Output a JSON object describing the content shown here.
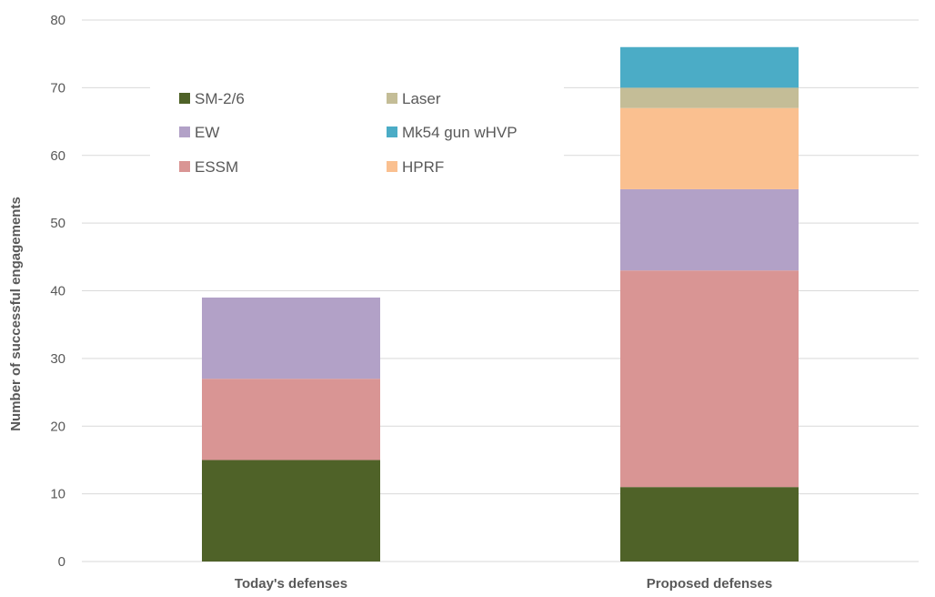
{
  "chart_data": {
    "type": "bar",
    "stacked": true,
    "title": "",
    "xlabel": "",
    "ylabel": "Number of successful engagements",
    "ylim": [
      0,
      80
    ],
    "yticks": [
      "0",
      "10",
      "20",
      "30",
      "40",
      "50",
      "60",
      "70",
      "80"
    ],
    "categories": [
      "Today's defenses",
      "Proposed defenses"
    ],
    "grid": true,
    "legend_position": "top-left",
    "series": [
      {
        "name": "SM-2/6",
        "color": "#4f6228",
        "values": [
          15,
          11
        ]
      },
      {
        "name": "ESSM",
        "color": "#d99594",
        "values": [
          12,
          32
        ]
      },
      {
        "name": "EW",
        "color": "#b2a1c7",
        "values": [
          12,
          12
        ]
      },
      {
        "name": "HPRF",
        "color": "#fac090",
        "values": [
          0,
          12
        ]
      },
      {
        "name": "Laser",
        "color": "#c4bd97",
        "values": [
          0,
          3
        ]
      },
      {
        "name": "Mk54 gun wHVP",
        "color": "#4bacc6",
        "values": [
          0,
          6
        ]
      }
    ],
    "legend_order": [
      "SM-2/6",
      "Laser",
      "EW",
      "Mk54 gun wHVP",
      "ESSM",
      "HPRF"
    ]
  }
}
